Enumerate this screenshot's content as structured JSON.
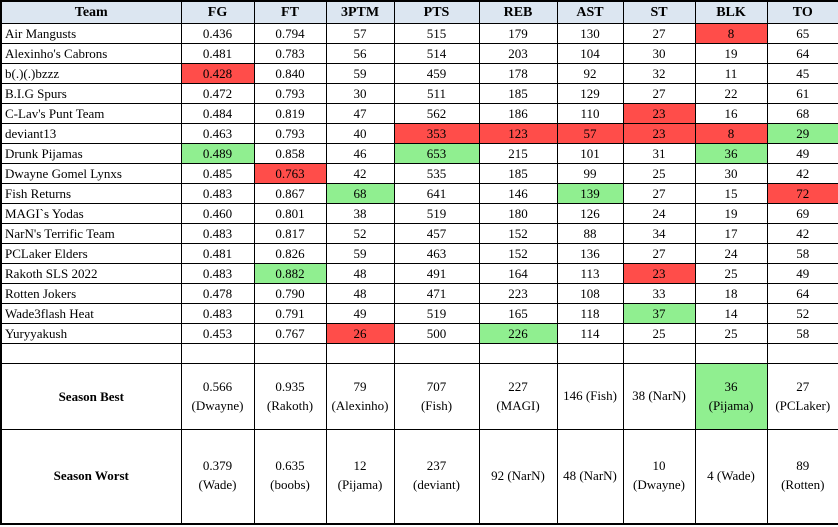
{
  "colors": {
    "header_bg": "#dce6f1",
    "best_bg": "#90ef90",
    "worst_bg": "#ff4d4a",
    "border": "#000000"
  },
  "columns": [
    {
      "key": "team",
      "label": "Team"
    },
    {
      "key": "fg",
      "label": "FG"
    },
    {
      "key": "ft",
      "label": "FT"
    },
    {
      "key": "tpm",
      "label": "3PTM"
    },
    {
      "key": "pts",
      "label": "PTS"
    },
    {
      "key": "reb",
      "label": "REB"
    },
    {
      "key": "ast",
      "label": "AST"
    },
    {
      "key": "st",
      "label": "ST"
    },
    {
      "key": "blk",
      "label": "BLK"
    },
    {
      "key": "to",
      "label": "TO"
    }
  ],
  "teams": [
    {
      "name": "Air Mangusts",
      "stats": {
        "fg": "0.436",
        "ft": "0.794",
        "tpm": "57",
        "pts": "515",
        "reb": "179",
        "ast": "130",
        "st": "27",
        "blk": "8",
        "to": "65"
      },
      "hl": {
        "blk": "worst"
      }
    },
    {
      "name": "Alexinho's Cabrons",
      "stats": {
        "fg": "0.481",
        "ft": "0.783",
        "tpm": "56",
        "pts": "514",
        "reb": "203",
        "ast": "104",
        "st": "30",
        "blk": "19",
        "to": "64"
      },
      "hl": {}
    },
    {
      "name": "b(.)(.)bzzz",
      "stats": {
        "fg": "0.428",
        "ft": "0.840",
        "tpm": "59",
        "pts": "459",
        "reb": "178",
        "ast": "92",
        "st": "32",
        "blk": "11",
        "to": "45"
      },
      "hl": {
        "fg": "worst"
      }
    },
    {
      "name": "B.I.G Spurs",
      "stats": {
        "fg": "0.472",
        "ft": "0.793",
        "tpm": "30",
        "pts": "511",
        "reb": "185",
        "ast": "129",
        "st": "27",
        "blk": "22",
        "to": "61"
      },
      "hl": {}
    },
    {
      "name": "C-Lav's Punt Team",
      "stats": {
        "fg": "0.484",
        "ft": "0.819",
        "tpm": "47",
        "pts": "562",
        "reb": "186",
        "ast": "110",
        "st": "23",
        "blk": "16",
        "to": "68"
      },
      "hl": {
        "st": "worst"
      }
    },
    {
      "name": "deviant13",
      "stats": {
        "fg": "0.463",
        "ft": "0.793",
        "tpm": "40",
        "pts": "353",
        "reb": "123",
        "ast": "57",
        "st": "23",
        "blk": "8",
        "to": "29"
      },
      "hl": {
        "pts": "worst",
        "reb": "worst",
        "ast": "worst",
        "st": "worst",
        "blk": "worst",
        "to": "best"
      }
    },
    {
      "name": "Drunk Pijamas",
      "stats": {
        "fg": "0.489",
        "ft": "0.858",
        "tpm": "46",
        "pts": "653",
        "reb": "215",
        "ast": "101",
        "st": "31",
        "blk": "36",
        "to": "49"
      },
      "hl": {
        "fg": "best",
        "pts": "best",
        "blk": "best"
      }
    },
    {
      "name": "Dwayne Gomel Lynxs",
      "stats": {
        "fg": "0.485",
        "ft": "0.763",
        "tpm": "42",
        "pts": "535",
        "reb": "185",
        "ast": "99",
        "st": "25",
        "blk": "30",
        "to": "42"
      },
      "hl": {
        "ft": "worst"
      }
    },
    {
      "name": "Fish Returns",
      "stats": {
        "fg": "0.483",
        "ft": "0.867",
        "tpm": "68",
        "pts": "641",
        "reb": "146",
        "ast": "139",
        "st": "27",
        "blk": "15",
        "to": "72"
      },
      "hl": {
        "tpm": "best",
        "ast": "best",
        "to": "worst"
      }
    },
    {
      "name": "MAGI`s Yodas",
      "stats": {
        "fg": "0.460",
        "ft": "0.801",
        "tpm": "38",
        "pts": "519",
        "reb": "180",
        "ast": "126",
        "st": "24",
        "blk": "19",
        "to": "69"
      },
      "hl": {}
    },
    {
      "name": "NarN's Terrific Team",
      "stats": {
        "fg": "0.483",
        "ft": "0.817",
        "tpm": "52",
        "pts": "457",
        "reb": "152",
        "ast": "88",
        "st": "34",
        "blk": "17",
        "to": "42"
      },
      "hl": {}
    },
    {
      "name": "PCLaker Elders",
      "stats": {
        "fg": "0.481",
        "ft": "0.826",
        "tpm": "59",
        "pts": "463",
        "reb": "152",
        "ast": "136",
        "st": "27",
        "blk": "24",
        "to": "58"
      },
      "hl": {}
    },
    {
      "name": "Rakoth SLS 2022",
      "stats": {
        "fg": "0.483",
        "ft": "0.882",
        "tpm": "48",
        "pts": "491",
        "reb": "164",
        "ast": "113",
        "st": "23",
        "blk": "25",
        "to": "49"
      },
      "hl": {
        "ft": "best",
        "st": "worst"
      }
    },
    {
      "name": "Rotten Jokers",
      "stats": {
        "fg": "0.478",
        "ft": "0.790",
        "tpm": "48",
        "pts": "471",
        "reb": "223",
        "ast": "108",
        "st": "33",
        "blk": "18",
        "to": "64"
      },
      "hl": {}
    },
    {
      "name": "Wade3flash Heat",
      "stats": {
        "fg": "0.483",
        "ft": "0.791",
        "tpm": "49",
        "pts": "519",
        "reb": "165",
        "ast": "118",
        "st": "37",
        "blk": "14",
        "to": "52"
      },
      "hl": {
        "st": "best"
      }
    },
    {
      "name": "Yuryyakush",
      "stats": {
        "fg": "0.453",
        "ft": "0.767",
        "tpm": "26",
        "pts": "500",
        "reb": "226",
        "ast": "114",
        "st": "25",
        "blk": "25",
        "to": "58"
      },
      "hl": {
        "tpm": "worst",
        "reb": "best"
      }
    }
  ],
  "summary": [
    {
      "label": "Season Best",
      "stats": {
        "fg": "0.566\n(Dwayne)",
        "ft": "0.935\n(Rakoth)",
        "tpm": "79\n(Alexinho)",
        "pts": "707\n(Fish)",
        "reb": "227\n(MAGI)",
        "ast": "146 (Fish)",
        "st": "38 (NarN)",
        "blk": "36\n(Pijama)",
        "to": "27\n(PCLaker)"
      },
      "hl": {
        "blk": "best"
      }
    },
    {
      "label": "Season Worst",
      "stats": {
        "fg": "0.379\n(Wade)",
        "ft": "0.635\n(boobs)",
        "tpm": "12\n(Pijama)",
        "pts": "237\n(deviant)",
        "reb": "92 (NarN)",
        "ast": "48 (NarN)",
        "st": "10\n(Dwayne)",
        "blk": "4 (Wade)",
        "to": "89\n(Rotten)"
      },
      "hl": {}
    }
  ]
}
